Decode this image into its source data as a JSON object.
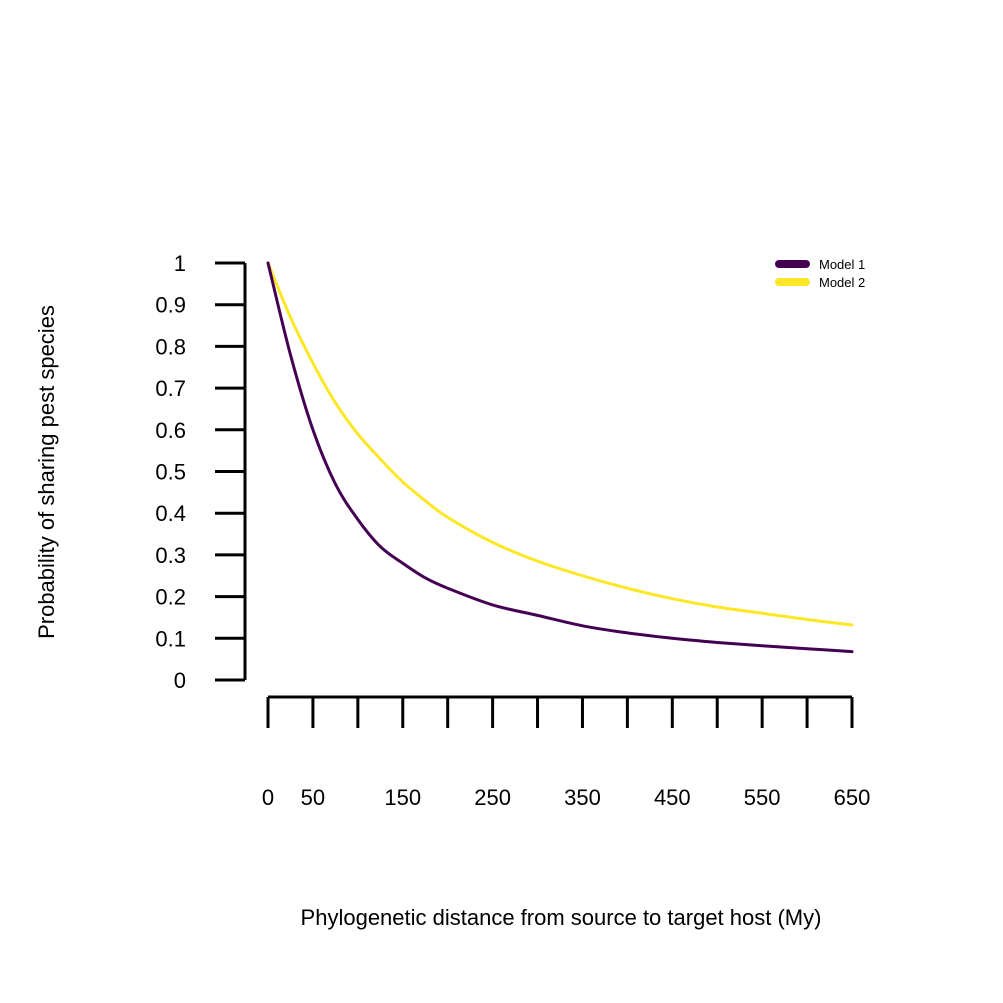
{
  "chart_data": {
    "type": "line",
    "title": "",
    "xlabel": "Phylogenetic distance from source to target host (My)",
    "ylabel": "Probability of sharing pest species",
    "xlim": [
      0,
      650
    ],
    "ylim": [
      0,
      1
    ],
    "x_ticks": [
      0,
      50,
      100,
      150,
      200,
      250,
      300,
      350,
      400,
      450,
      500,
      550,
      600,
      650
    ],
    "x_tick_labels": [
      "0",
      "50",
      "150",
      "250",
      "350",
      "450",
      "550",
      "650"
    ],
    "x_tick_label_values": [
      0,
      50,
      150,
      250,
      350,
      450,
      550,
      650
    ],
    "y_ticks": [
      0,
      0.1,
      0.2,
      0.3,
      0.4,
      0.5,
      0.6,
      0.7,
      0.8,
      0.9,
      1
    ],
    "y_tick_labels": [
      "0",
      "0.1",
      "0.2",
      "0.3",
      "0.4",
      "0.5",
      "0.6",
      "0.7",
      "0.8",
      "0.9",
      "1"
    ],
    "grid": false,
    "legend_position": "top-right",
    "x": [
      0,
      25,
      50,
      75,
      100,
      125,
      150,
      175,
      200,
      250,
      300,
      350,
      400,
      450,
      500,
      550,
      600,
      650
    ],
    "series": [
      {
        "name": "Model 1",
        "color": "#440154",
        "values": [
          1.0,
          0.78,
          0.6,
          0.47,
          0.385,
          0.32,
          0.28,
          0.245,
          0.22,
          0.18,
          0.155,
          0.13,
          0.113,
          0.1,
          0.09,
          0.082,
          0.075,
          0.068
        ]
      },
      {
        "name": "Model 2",
        "color": "#FDE725",
        "values": [
          1.0,
          0.87,
          0.76,
          0.665,
          0.59,
          0.53,
          0.475,
          0.43,
          0.39,
          0.33,
          0.285,
          0.25,
          0.22,
          0.195,
          0.175,
          0.16,
          0.145,
          0.132
        ]
      }
    ]
  }
}
